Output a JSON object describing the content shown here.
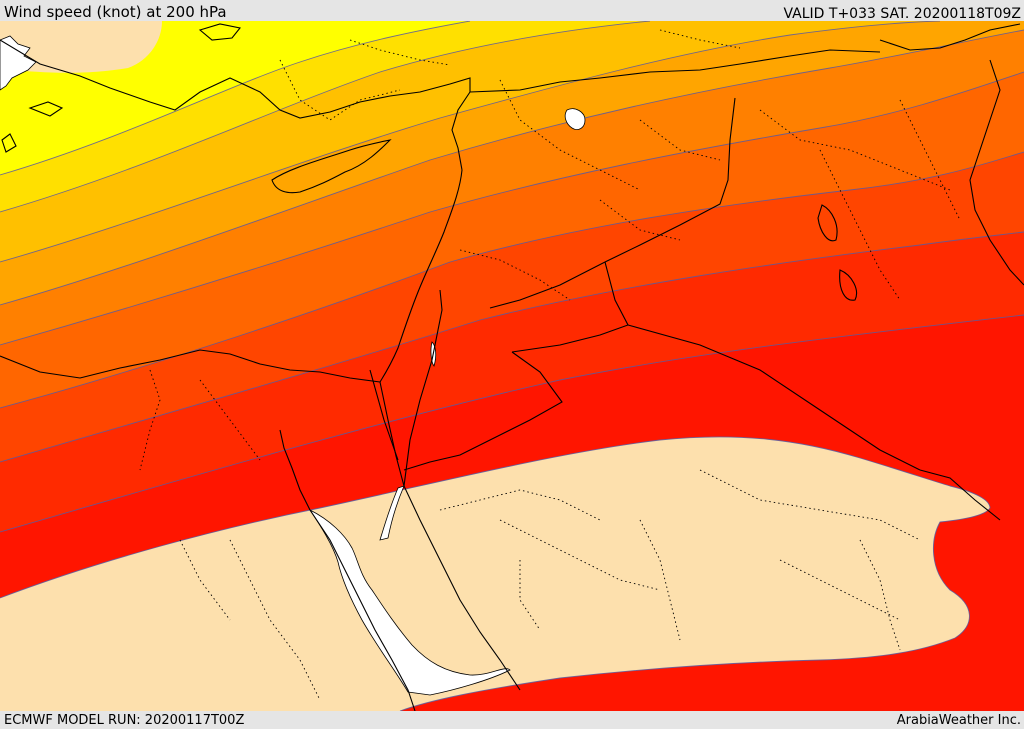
{
  "header": {
    "title": "Wind speed (knot) at 200 hPa",
    "valid": "VALID T+033 SAT. 20200118T09Z"
  },
  "footer": {
    "model_run": "ECMWF MODEL RUN: 20200117T00Z",
    "credit": "ArabiaWeather Inc."
  },
  "colors": {
    "band_light": "#fde0ad",
    "band_yellow_1": "#ffff00",
    "band_yellow_2": "#ffe000",
    "band_gold": "#ffc000",
    "band_orange_1": "#ffa500",
    "band_orange_2": "#ff8000",
    "band_orange_3": "#ff6600",
    "band_red_orange": "#ff4500",
    "band_red_1": "#ff2a00",
    "band_red_2": "#ff1500",
    "band_red_3": "#ff0000",
    "water": "#ffffff",
    "contour": "#5a5aa0",
    "coast": "#000000"
  }
}
